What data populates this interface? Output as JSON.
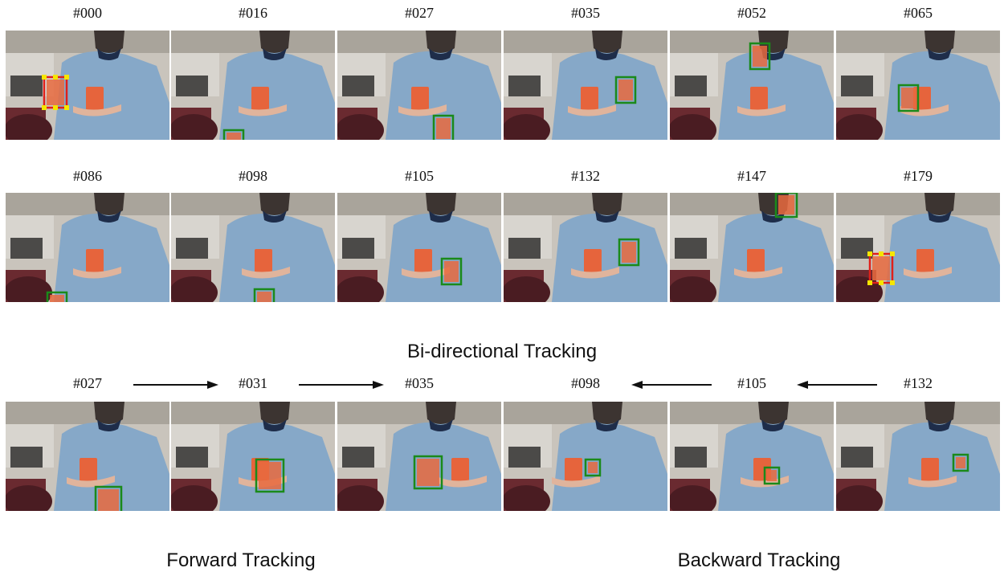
{
  "rows": [
    {
      "frames": [
        "#000",
        "#016",
        "#027",
        "#035",
        "#052",
        "#065"
      ]
    },
    {
      "frames": [
        "#086",
        "#098",
        "#105",
        "#132",
        "#147",
        "#179"
      ]
    }
  ],
  "caption_bidirectional": "Bi-directional Tracking",
  "sequence": {
    "forward_frames": [
      "#027",
      "#031",
      "#035"
    ],
    "backward_frames": [
      "#098",
      "#105",
      "#132"
    ]
  },
  "caption_forward": "Forward Tracking",
  "caption_backward": "Backward Tracking",
  "colors": {
    "tracking_box": "#1a8a1a",
    "keyframe_box": "#e0201a",
    "corner_marker": "#f5e600",
    "arrow": "#111111"
  }
}
